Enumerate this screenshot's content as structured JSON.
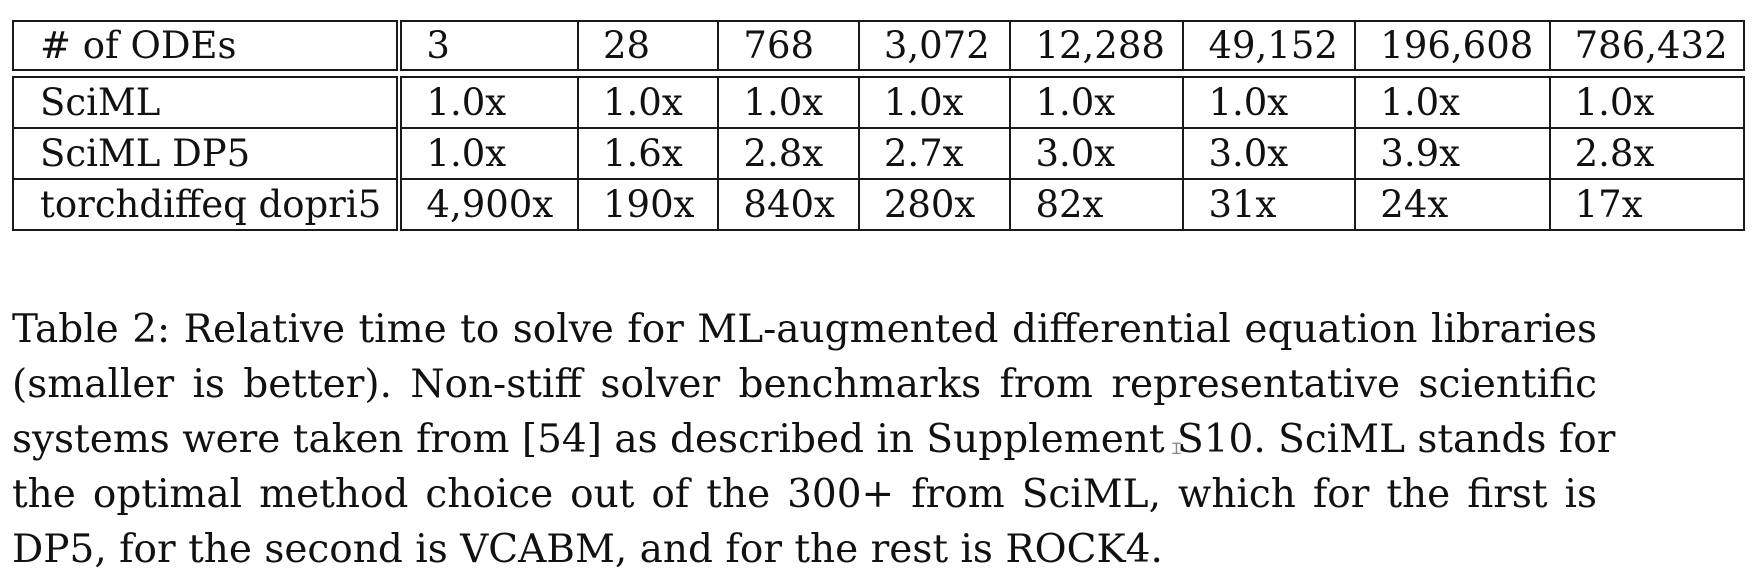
{
  "table": {
    "header": [
      "# of ODEs",
      "3",
      "28",
      "768",
      "3,072",
      "12,288",
      "49,152",
      "196,608",
      "786,432"
    ],
    "rows": [
      [
        "SciML",
        "1.0x",
        "1.0x",
        "1.0x",
        "1.0x",
        "1.0x",
        "1.0x",
        "1.0x",
        "1.0x"
      ],
      [
        "SciML DP5",
        "1.0x",
        "1.6x",
        "2.8x",
        "2.7x",
        "3.0x",
        "3.0x",
        "3.9x",
        "2.8x"
      ],
      [
        "torchdiffeq dopri5",
        "4,900x",
        "190x",
        "840x",
        "280x",
        "82x",
        "31x",
        "24x",
        "17x"
      ]
    ]
  },
  "caption": {
    "lines": [
      "Table 2: Relative time to solve for ML-augmented differential equation libraries",
      "(smaller is better).  Non-stiff solver benchmarks from representative scientific",
      "systems were taken from [54] as described in Supplement S10.  SciML stands for",
      "the optimal method choice out of the 300+ from SciML, which for the first is",
      "DP5, for the second is VCABM, and for the rest is ROCK4."
    ]
  }
}
